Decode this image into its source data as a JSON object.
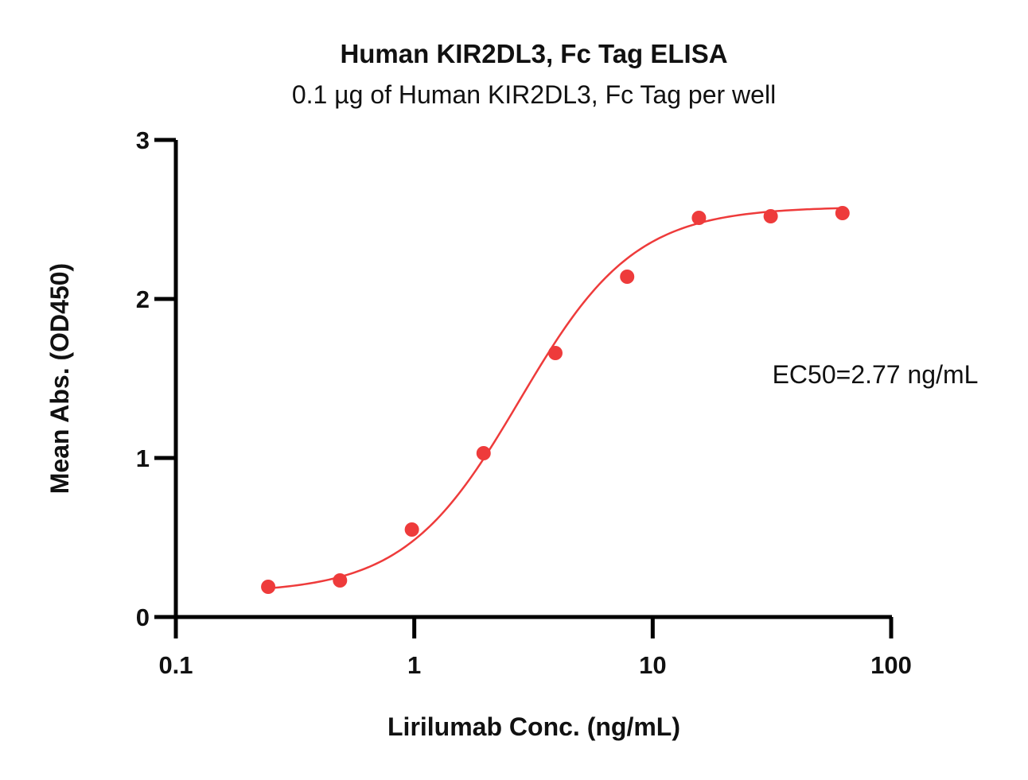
{
  "chart_data": {
    "type": "scatter",
    "title": "Human KIR2DL3, Fc Tag ELISA",
    "subtitle": "0.1 µg of Human KIR2DL3, Fc Tag per well",
    "xlabel": "Lirilumab Conc. (ng/mL)",
    "ylabel": "Mean Abs. (OD450)",
    "xscale": "log",
    "xlim": [
      0.1,
      100
    ],
    "ylim": [
      0,
      3
    ],
    "xticks": [
      "0.1",
      "1",
      "10",
      "100"
    ],
    "yticks": [
      "0",
      "1",
      "2",
      "3"
    ],
    "annotation": "EC50=2.77 ng/mL",
    "grid": false,
    "series": [
      {
        "color": "#ee3b3b",
        "x": [
          0.244,
          0.488,
          0.977,
          1.953,
          3.906,
          7.813,
          15.625,
          31.25,
          62.5
        ],
        "y": [
          0.19,
          0.23,
          0.55,
          1.03,
          1.66,
          2.14,
          2.51,
          2.52,
          2.54
        ]
      }
    ],
    "fit": {
      "model": "4PL",
      "bottom": 0.15,
      "top": 2.58,
      "ec50": 2.77,
      "hill": 1.8
    }
  }
}
